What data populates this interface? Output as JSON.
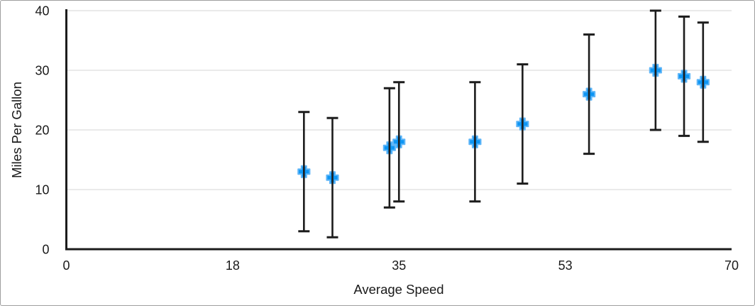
{
  "chart_data": {
    "type": "scatter",
    "title": "",
    "xlabel": "Average Speed",
    "ylabel": "Miles Per Gallon",
    "xlim": [
      0,
      70
    ],
    "ylim": [
      0,
      40
    ],
    "x_ticks": {
      "values": [
        0,
        17.5,
        35,
        52.5,
        70
      ],
      "labels": [
        "0",
        "18",
        "35",
        "53",
        "70"
      ]
    },
    "y_ticks": {
      "values": [
        0,
        10,
        20,
        30,
        40
      ],
      "labels": [
        "0",
        "10",
        "20",
        "30",
        "40"
      ]
    },
    "grid": "horizontal-only",
    "legend_position": "none",
    "marker": {
      "shape": "plus",
      "fill": "#0e96f4",
      "outline": "#5fb6f8"
    },
    "error_bars": {
      "mode": "fixed-value",
      "plus": 10,
      "minus": 10
    },
    "series": [
      {
        "name": "Miles Per Gallon",
        "points": [
          {
            "x": 25,
            "y": 13,
            "error_plus": 10,
            "error_minus": 10
          },
          {
            "x": 28,
            "y": 12,
            "error_plus": 10,
            "error_minus": 10
          },
          {
            "x": 34,
            "y": 17,
            "error_plus": 10,
            "error_minus": 10
          },
          {
            "x": 35,
            "y": 18,
            "error_plus": 10,
            "error_minus": 10
          },
          {
            "x": 43,
            "y": 18,
            "error_plus": 10,
            "error_minus": 10
          },
          {
            "x": 48,
            "y": 21,
            "error_plus": 10,
            "error_minus": 10
          },
          {
            "x": 55,
            "y": 26,
            "error_plus": 10,
            "error_minus": 10
          },
          {
            "x": 62,
            "y": 30,
            "error_plus": 10,
            "error_minus": 10
          },
          {
            "x": 65,
            "y": 29,
            "error_plus": 10,
            "error_minus": 10
          },
          {
            "x": 67,
            "y": 28,
            "error_plus": 10,
            "error_minus": 10
          }
        ]
      }
    ],
    "colors": {
      "axis": "#1c1c1c",
      "error_bar": "#1c1c1c",
      "gridline": "#e4e4e4",
      "text": "#1a1a1a",
      "background": "#ffffff",
      "frame_border": "#9e9e9e"
    }
  }
}
